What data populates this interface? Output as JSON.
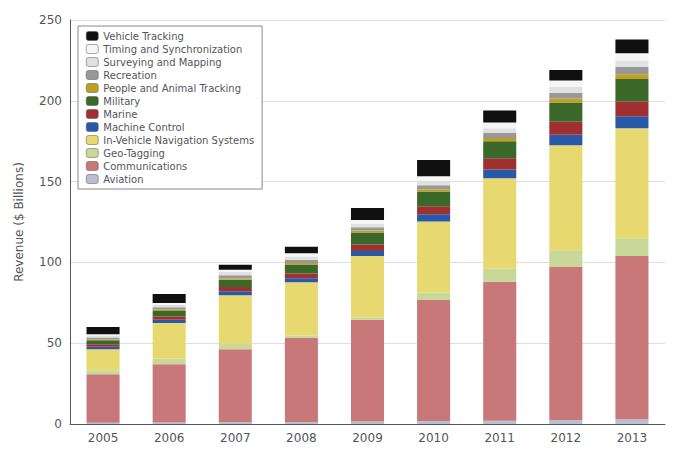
{
  "chart_data": {
    "type": "bar",
    "stacked": true,
    "categories": [
      "2005",
      "2006",
      "2007",
      "2008",
      "2009",
      "2010",
      "2011",
      "2012",
      "2013"
    ],
    "series": [
      {
        "name": "Aviation",
        "color": "#b8bfd0",
        "values": [
          0.8,
          1.0,
          1.2,
          1.2,
          1.5,
          1.8,
          2.0,
          2.5,
          3.0
        ]
      },
      {
        "name": "Communications",
        "color": "#c87878",
        "values": [
          30,
          36,
          45,
          52,
          63,
          75,
          86,
          95,
          101
        ]
      },
      {
        "name": "Geo-Tagging",
        "color": "#c8d898",
        "values": [
          2.5,
          3.5,
          3.5,
          1.5,
          1.5,
          4.5,
          8.0,
          10.0,
          11.0
        ]
      },
      {
        "name": "In-Vehicle Navigation Systems",
        "color": "#e8d870",
        "values": [
          13,
          22,
          30,
          33,
          38,
          44,
          56,
          65,
          68
        ]
      },
      {
        "name": "Machine Control",
        "color": "#2858a8",
        "values": [
          1.5,
          2.0,
          2.5,
          2.5,
          3.0,
          4.5,
          5.5,
          6.5,
          7.5
        ]
      },
      {
        "name": "Marine",
        "color": "#a03030",
        "values": [
          1.5,
          2.0,
          2.5,
          3.0,
          4.0,
          5.0,
          7.0,
          8.0,
          9.0
        ]
      },
      {
        "name": "Military",
        "color": "#3a6828",
        "values": [
          2.5,
          3.5,
          4.5,
          5.5,
          7.5,
          9.0,
          10.5,
          12.0,
          14.0
        ]
      },
      {
        "name": "People and Animal Tracking",
        "color": "#c0a020",
        "values": [
          0.5,
          0.7,
          0.8,
          1.0,
          1.2,
          1.5,
          2.0,
          2.5,
          3.0
        ]
      },
      {
        "name": "Recreation",
        "color": "#989898",
        "values": [
          1.2,
          1.5,
          2.0,
          2.0,
          2.0,
          2.5,
          3.0,
          3.5,
          4.5
        ]
      },
      {
        "name": "Surveying and Mapping",
        "color": "#e0e0e0",
        "values": [
          1.2,
          1.5,
          2.0,
          2.0,
          2.0,
          2.5,
          3.0,
          3.5,
          4.0
        ]
      },
      {
        "name": "Timing and Synchronization",
        "color": "#f5f5f5",
        "values": [
          0.8,
          1.2,
          1.5,
          2.0,
          2.5,
          3.0,
          3.5,
          4.0,
          4.5
        ]
      },
      {
        "name": "Vehicle Tracking",
        "color": "#101010",
        "values": [
          4.5,
          5.5,
          3.0,
          4.0,
          7.5,
          10.0,
          7.5,
          6.5,
          8.5
        ]
      }
    ],
    "ylabel": "Revenue ($ Billions)",
    "ylim": [
      0,
      250
    ],
    "yticks": [
      0,
      50,
      100,
      150,
      200,
      250
    ],
    "grid": true,
    "legend": "upper left"
  }
}
